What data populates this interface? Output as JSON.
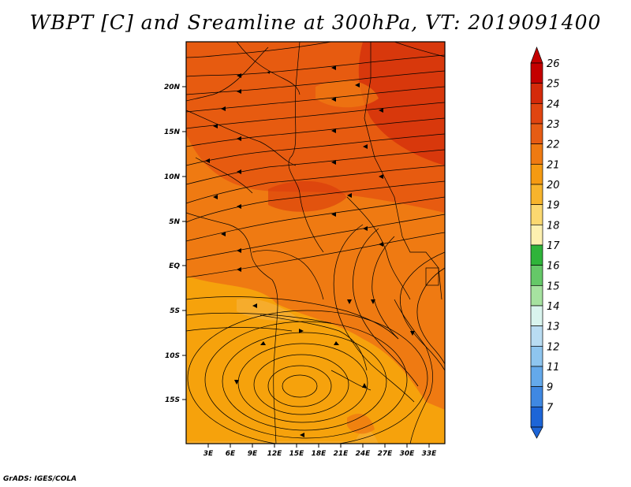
{
  "title": "WBPT [C] and Sreamline at 300hPa, VT: 2019091400",
  "credit": "GrADS: IGES/COLA",
  "map": {
    "lat_range": [
      -20,
      24
    ],
    "lon_range": [
      0,
      35
    ],
    "lat_ticks": [
      "20N",
      "15N",
      "10N",
      "5N",
      "EQ",
      "5S",
      "10S",
      "15S"
    ],
    "lon_ticks": [
      "3E",
      "6E",
      "9E",
      "12E",
      "15E",
      "18E",
      "21E",
      "24E",
      "27E",
      "30E",
      "33E"
    ],
    "field": "wet-bulb potential temperature",
    "contour_colors": {
      "19-20": "#fbe17a",
      "20-21": "#f6b13a",
      "21-22": "#f6a20c",
      "22-23": "#ef7a12",
      "23-24": "#e75b10",
      "24-25": "#d8380c"
    },
    "cyclone_center": "12E-15E, 15S"
  },
  "colorbar": {
    "levels": [
      "26",
      "25",
      "24",
      "23",
      "22",
      "21",
      "20",
      "19",
      "18",
      "17",
      "16",
      "15",
      "14",
      "13",
      "12",
      "11",
      "9",
      "7"
    ],
    "colors": [
      "#c40000",
      "#d42a0a",
      "#e04510",
      "#e65c14",
      "#ef7a12",
      "#f59a12",
      "#f7b42c",
      "#fbd870",
      "#fdf0b0",
      "#2fb43a",
      "#65c868",
      "#a6e2a0",
      "#d9f4ee",
      "#b9dcf2",
      "#8ec5ef",
      "#64a9eb",
      "#3f88e2",
      "#1d65d7"
    ]
  }
}
